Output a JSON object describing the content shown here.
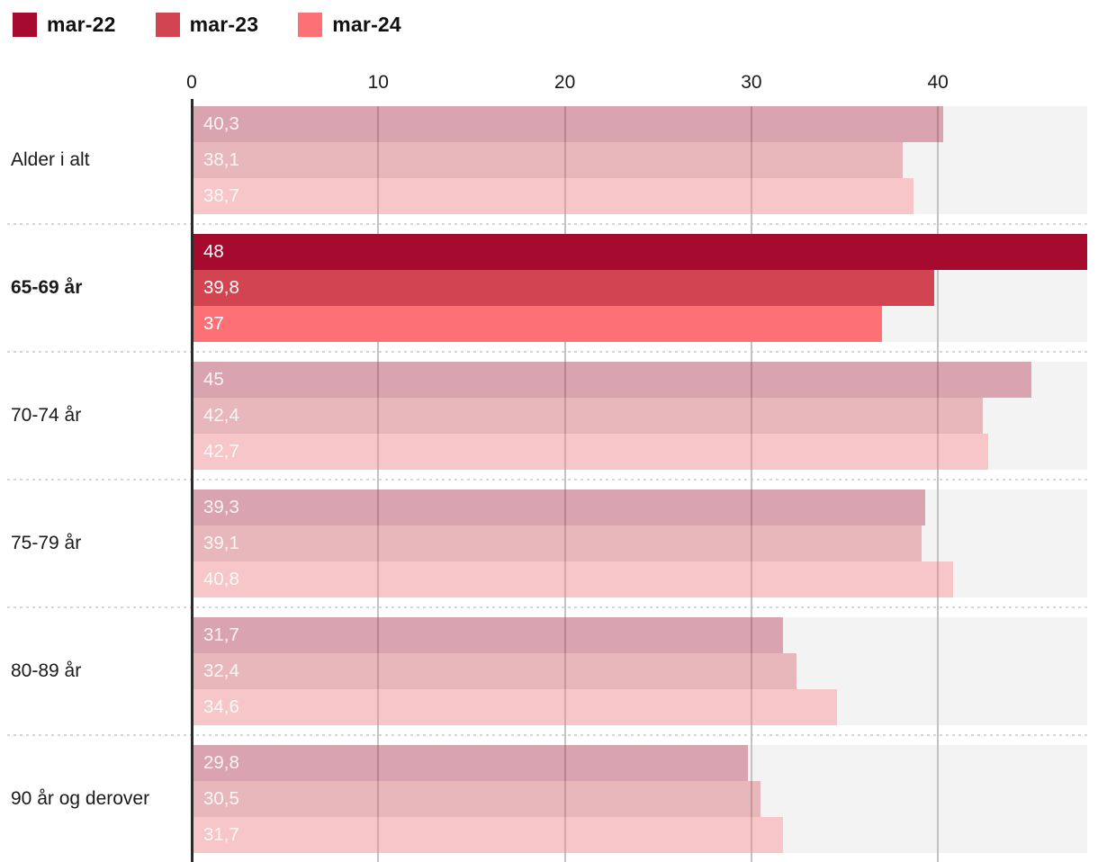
{
  "legend": {
    "items": [
      {
        "label": "mar-22",
        "color": "#a60a2e"
      },
      {
        "label": "mar-23",
        "color": "#d2444f"
      },
      {
        "label": "mar-24",
        "color": "#fc7076"
      }
    ]
  },
  "chart_data": {
    "type": "bar",
    "orientation": "horizontal",
    "title": "",
    "xlabel": "",
    "ylabel": "",
    "x_ticks": [
      0,
      10,
      20,
      30,
      40
    ],
    "x_max": 48,
    "grid": "vertical",
    "legend_position": "top-left",
    "highlighted_category": "65-69 år",
    "muted_alpha": 0.34,
    "series_names": [
      "mar-22",
      "mar-23",
      "mar-24"
    ],
    "series_colors": [
      "#a60a2e",
      "#d2444f",
      "#fc7076"
    ],
    "groups": [
      {
        "category": "Alder i alt",
        "highlight": false,
        "values": [
          40.3,
          38.1,
          38.7
        ],
        "labels": [
          "40,3",
          "38,1",
          "38,7"
        ]
      },
      {
        "category": "65-69 år",
        "highlight": true,
        "values": [
          48,
          39.8,
          37
        ],
        "labels": [
          "48",
          "39,8",
          "37"
        ]
      },
      {
        "category": "70-74 år",
        "highlight": false,
        "values": [
          45,
          42.4,
          42.7
        ],
        "labels": [
          "45",
          "42,4",
          "42,7"
        ]
      },
      {
        "category": "75-79 år",
        "highlight": false,
        "values": [
          39.3,
          39.1,
          40.8
        ],
        "labels": [
          "39,3",
          "39,1",
          "40,8"
        ]
      },
      {
        "category": "80-89 år",
        "highlight": false,
        "values": [
          31.7,
          32.4,
          34.6
        ],
        "labels": [
          "31,7",
          "32,4",
          "34,6"
        ]
      },
      {
        "category": "90 år og derover",
        "highlight": false,
        "values": [
          29.8,
          30.5,
          31.7
        ],
        "labels": [
          "29,8",
          "30,5",
          "31,7"
        ]
      }
    ],
    "colors": {
      "plot_track": "#f3f3f3",
      "gridline": "#c2c2c2",
      "axis_line": "#2b2b2b",
      "separator": "#d6d6d6",
      "tick_label": "#1a1a1a",
      "category_label": "#1a1a1a",
      "value_label": "#ffffff"
    }
  }
}
